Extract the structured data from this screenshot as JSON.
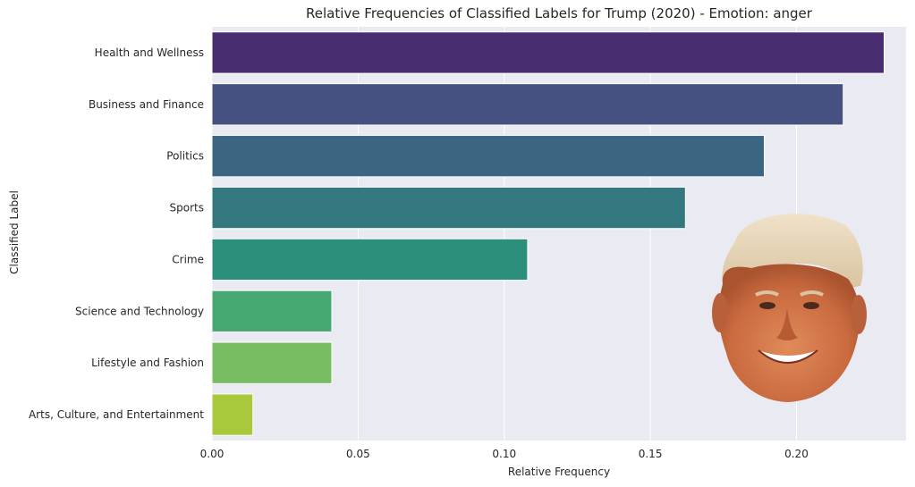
{
  "chart_data": {
    "type": "bar",
    "orientation": "horizontal",
    "title": "Relative Frequencies of Classified Labels for Trump (2020) - Emotion: anger",
    "xlabel": "Relative Frequency",
    "ylabel": "Classified Label",
    "xlim": [
      0,
      0.2375
    ],
    "xticks": [
      "0.00",
      "0.05",
      "0.10",
      "0.15",
      "0.20"
    ],
    "xtick_values": [
      0,
      0.05,
      0.1,
      0.15,
      0.2
    ],
    "grid": true,
    "categories": [
      "Health and Wellness",
      "Business and Finance",
      "Politics",
      "Sports",
      "Crime",
      "Science and Technology",
      "Lifestyle and Fashion",
      "Arts, Culture, and Entertainment"
    ],
    "values": [
      0.23,
      0.216,
      0.189,
      0.162,
      0.108,
      0.041,
      0.041,
      0.014
    ],
    "colors": [
      "#482c70",
      "#465081",
      "#3c6581",
      "#32787e",
      "#2c8f7b",
      "#46a971",
      "#77be62",
      "#a9c93c"
    ],
    "background": "#eaeaf2",
    "grid_color": "#ffffff"
  },
  "decoration": {
    "face_image": "smiling-face-photo-icon"
  }
}
